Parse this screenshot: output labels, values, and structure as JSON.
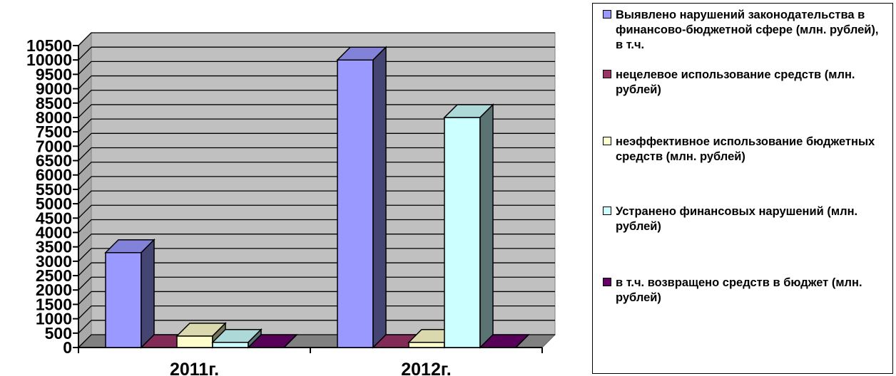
{
  "chart_data": {
    "type": "bar",
    "categories": [
      "2011г.",
      "2012г."
    ],
    "ylim": [
      0,
      10500
    ],
    "ytick_step": 500,
    "grid": true,
    "legend_position": "right",
    "series": [
      {
        "name": "Выявлено нарушений законодательства в финансово-бюджетной сфере (млн. рублей), в т.ч.",
        "color": "#9999ff",
        "values": [
          3300,
          10000
        ]
      },
      {
        "name": "нецелевое использование средств (млн. рублей)",
        "color": "#993366",
        "values": [
          0,
          0
        ]
      },
      {
        "name": "неэффективное использование бюджетных средств (млн. рублей)",
        "color": "#ffffcc",
        "values": [
          400,
          180
        ]
      },
      {
        "name": "Устранено финансовых нарушений (млн. рублей)",
        "color": "#ccffff",
        "values": [
          180,
          8000
        ]
      },
      {
        "name": "в т.ч. возвращено средств в бюджет (млн. рублей)",
        "color": "#660066",
        "values": [
          0,
          0
        ]
      }
    ]
  },
  "legend": {
    "items": [
      {
        "label": "Выявлено нарушений законодательства в финансово-бюджетной сфере (млн. рублей), в т.ч.",
        "color": "#9999ff"
      },
      {
        "label": "нецелевое использование средств (млн. рублей)",
        "color": "#993366"
      },
      {
        "label": "неэффективное использование бюджетных средств (млн. рублей)",
        "color": "#ffffcc"
      },
      {
        "label": "Устранено финансовых нарушений (млн. рублей)",
        "color": "#ccffff"
      },
      {
        "label": "в т.ч. возвращено средств в бюджет (млн. рублей)",
        "color": "#660066"
      }
    ]
  },
  "colors": {
    "plot_wall": "#c0c0c0",
    "floor": "#808080",
    "grid": "#000000"
  }
}
